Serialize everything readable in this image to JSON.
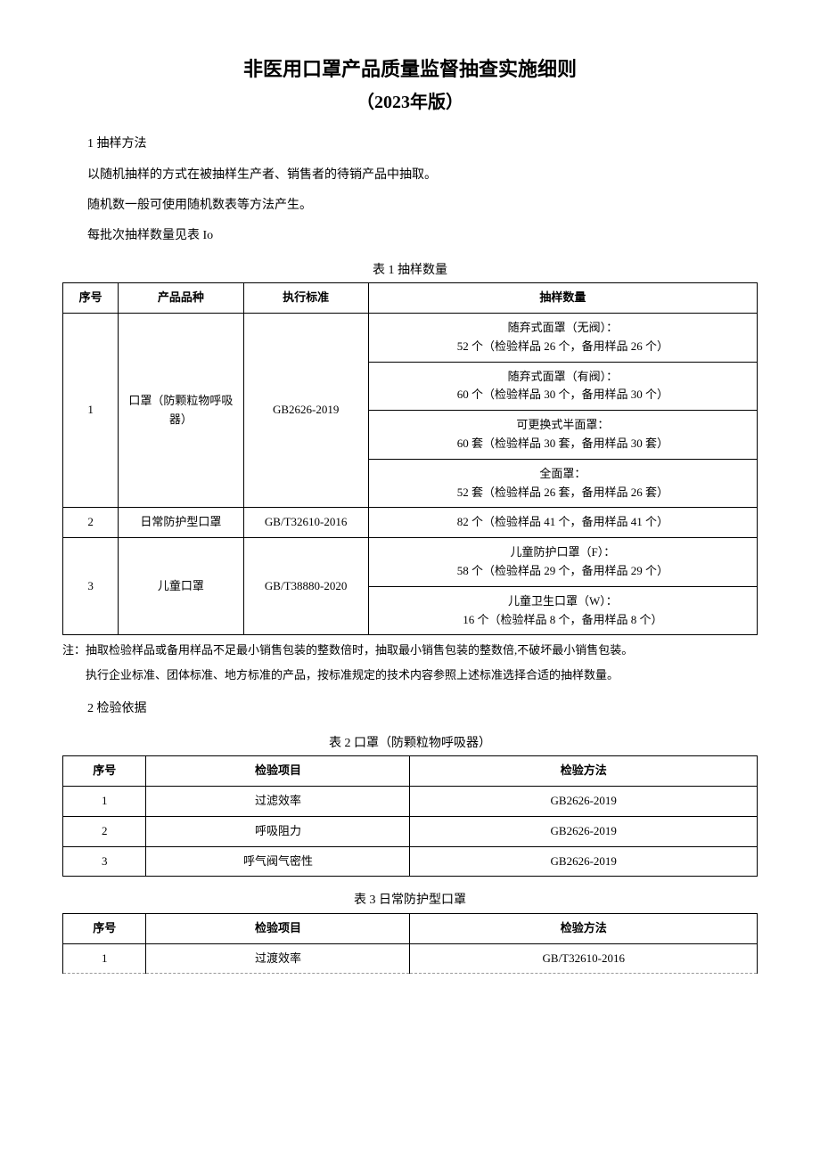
{
  "title": "非医用口罩产品质量监督抽查实施细则",
  "subtitle": "（2023年版）",
  "section1": {
    "heading": "1 抽样方法",
    "p1": "以随机抽样的方式在被抽样生产者、销售者的待销产品中抽取。",
    "p2": "随机数一般可使用随机数表等方法产生。",
    "p3": "每批次抽样数量见表 Io"
  },
  "table1": {
    "caption": "表 1 抽样数量",
    "headers": {
      "seq": "序号",
      "product": "产品品种",
      "standard": "执行标准",
      "qty": "抽样数量"
    },
    "rows": [
      {
        "seq": "1",
        "product": "口罩（防颗粒物呼吸器）",
        "standard": "GB2626-2019",
        "qtys": [
          {
            "l1": "随弃式面罩（无阀）：",
            "l2": "52 个（检验样品 26 个，备用样品 26 个）"
          },
          {
            "l1": "随弃式面罩（有阀）：",
            "l2": "60 个（检验样品 30 个，备用样品 30 个）"
          },
          {
            "l1": "可更换式半面罩：",
            "l2": "60 套（检验样品 30 套，备用样品 30 套）"
          },
          {
            "l1": "全面罩：",
            "l2": "52 套（检验样品 26 套，备用样品 26 套）"
          }
        ]
      },
      {
        "seq": "2",
        "product": "日常防护型口罩",
        "standard": "GB/T32610-2016",
        "qty": "82 个（检验样品 41 个，备用样品 41 个）"
      },
      {
        "seq": "3",
        "product": "儿童口罩",
        "standard": "GB/T38880-2020",
        "qtys": [
          {
            "l1": "儿童防护口罩（F）：",
            "l2": "58 个（检验样品 29 个，备用样品 29 个）"
          },
          {
            "l1": "儿童卫生口罩（W）：",
            "l2": "16 个（检验样品 8 个，备用样品 8 个）"
          }
        ]
      }
    ],
    "note1": "注：抽取检验样品或备用样品不足最小销售包装的整数倍时，抽取最小销售包装的整数倍,不破坏最小销售包装。",
    "note2": "执行企业标准、团体标准、地方标准的产品，按标准规定的技术内容参照上述标准选择合适的抽样数量。"
  },
  "section2": {
    "heading": "2 检验依据"
  },
  "table2": {
    "caption": "表 2 口罩（防颗粒物呼吸器）",
    "headers": {
      "seq": "序号",
      "item": "检验项目",
      "method": "检验方法"
    },
    "rows": [
      {
        "seq": "1",
        "item": "过滤效率",
        "method": "GB2626-2019"
      },
      {
        "seq": "2",
        "item": "呼吸阻力",
        "method": "GB2626-2019"
      },
      {
        "seq": "3",
        "item": "呼气阀气密性",
        "method": "GB2626-2019"
      }
    ]
  },
  "table3": {
    "caption": "表 3 日常防护型口罩",
    "headers": {
      "seq": "序号",
      "item": "检验项目",
      "method": "检验方法"
    },
    "rows": [
      {
        "seq": "1",
        "item": "过渡效率",
        "method": "GB/T32610-2016"
      }
    ]
  }
}
